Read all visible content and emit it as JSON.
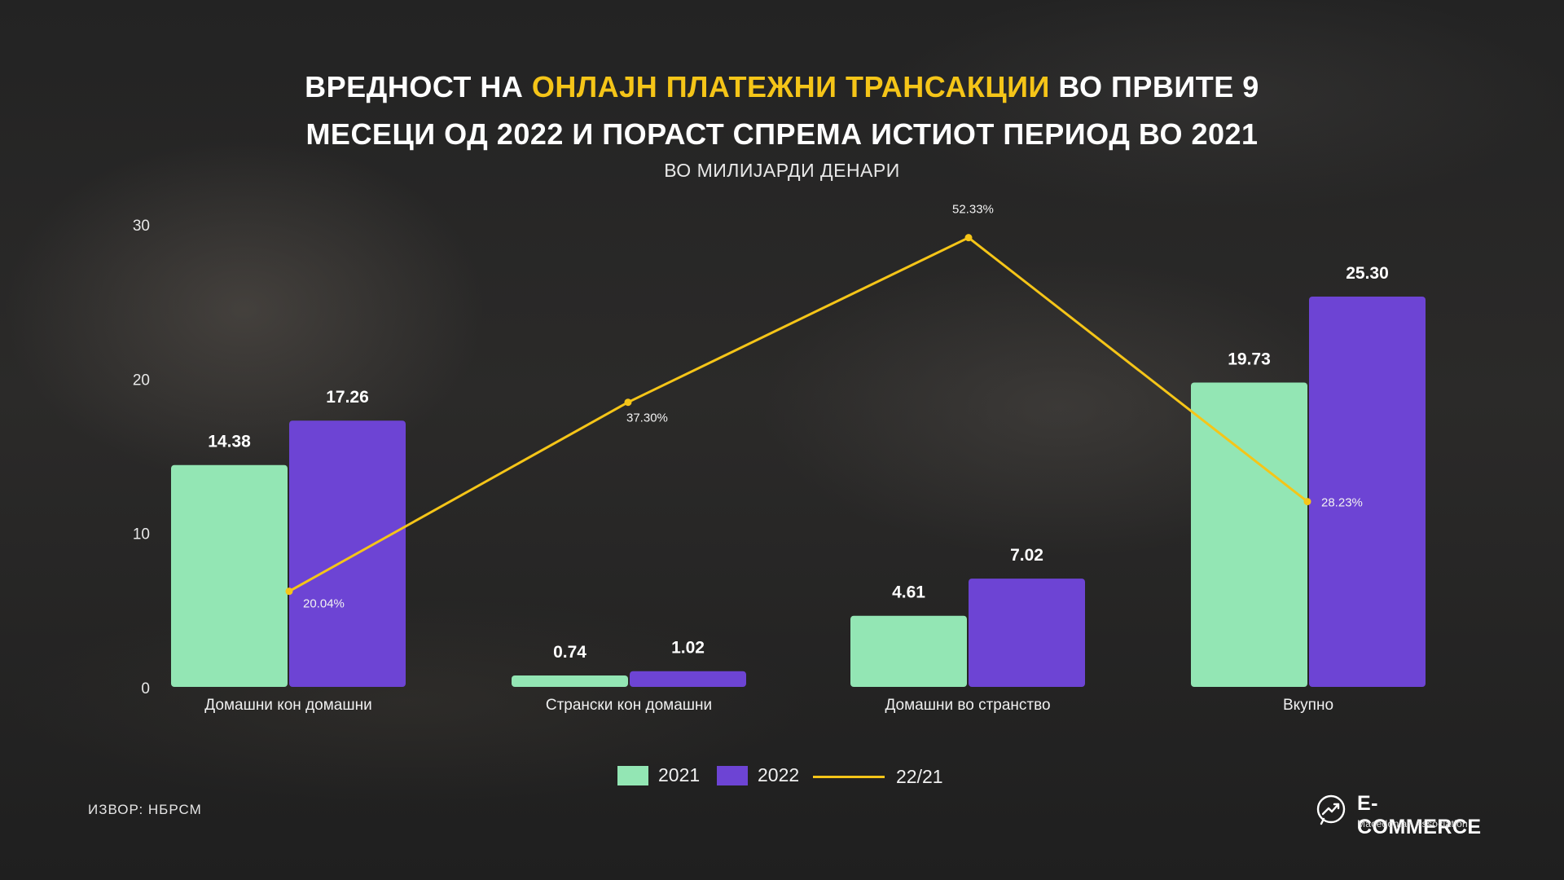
{
  "header": {
    "title_part1": "ВРЕДНОСТ НА ",
    "title_highlight": "ОНЛАЈН ПЛАТЕЖНИ ТРАНСАКЦИИ",
    "title_part2": " ВО ПРВИТЕ 9",
    "title_line2": "МЕСЕЦИ ОД 2022 И ПОРАСТ СПРЕМА ИСТИОТ ПЕРИОД ВО 2021",
    "subtitle": "ВО МИЛИЈАРДИ ДЕНАРИ"
  },
  "chart_data": {
    "type": "bar",
    "categories": [
      "Домашни кон домашни",
      "Странски кон домашни",
      "Домашни во странство",
      "Вкупно"
    ],
    "series": [
      {
        "name": "2021",
        "type": "bar",
        "color": "#93e6b4",
        "values": [
          14.38,
          0.74,
          4.61,
          19.73
        ],
        "labels": [
          "14.38",
          "0.74",
          "4.61",
          "19.73"
        ]
      },
      {
        "name": "2022",
        "type": "bar",
        "color": "#6d44d4",
        "values": [
          17.26,
          1.02,
          7.02,
          25.3
        ],
        "labels": [
          "17.26",
          "1.02",
          "7.02",
          "25.30"
        ]
      },
      {
        "name": "22/21",
        "type": "line",
        "color": "#f5c518",
        "values": [
          20.04,
          37.3,
          52.33,
          28.23
        ],
        "labels": [
          "20.04%",
          "37.30%",
          "52.33%",
          "28.23%"
        ]
      }
    ],
    "y_axis": {
      "min": 0,
      "max": 30,
      "ticks": [
        "0",
        "10",
        "20",
        "30"
      ]
    },
    "grid": false,
    "legend_position": "bottom-center"
  },
  "legend": {
    "items": [
      {
        "label": "2021",
        "color": "#93e6b4"
      },
      {
        "label": "2022",
        "color": "#6d44d4"
      },
      {
        "label": "22/21",
        "color": "#f5c518"
      }
    ]
  },
  "footer": {
    "source": "ИЗВОР: НБРСМ",
    "logo_name": "E-COMMERCE",
    "logo_sub": "Macedonian Association"
  }
}
